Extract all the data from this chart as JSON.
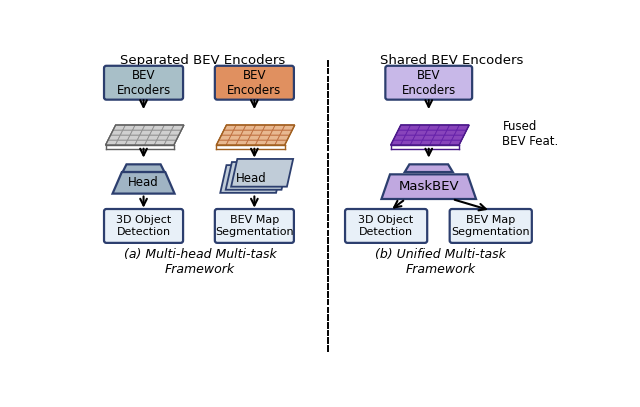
{
  "title_left": "Separated BEV Encoders",
  "title_right": "Shared BEV Encoders",
  "caption_left": "(a) Multi-head Multi-task\nFramework",
  "caption_right": "(b) Unified Multi-task\nFramework",
  "fused_label": "Fused\nBEV Feat.",
  "colors": {
    "gray_enc_fill": "#a8bfc8",
    "orange_enc_fill": "#e09060",
    "purple_enc_fill": "#c8b8e8",
    "blue_outline": "#2c3e6e",
    "gray_feat_fill": "#d0d0d0",
    "gray_feat_grid": "#909090",
    "orange_feat_fill": "#e8b890",
    "orange_feat_grid": "#c07040",
    "purple_feat_fill": "#8844bb",
    "purple_feat_grid": "#6622aa",
    "gray_head_fill": "#a0b4c4",
    "purple_maskbev_fill": "#c0a8e0",
    "output_fill": "#e8f0f8",
    "white": "#ffffff",
    "bg": "#ffffff",
    "black": "#000000"
  }
}
